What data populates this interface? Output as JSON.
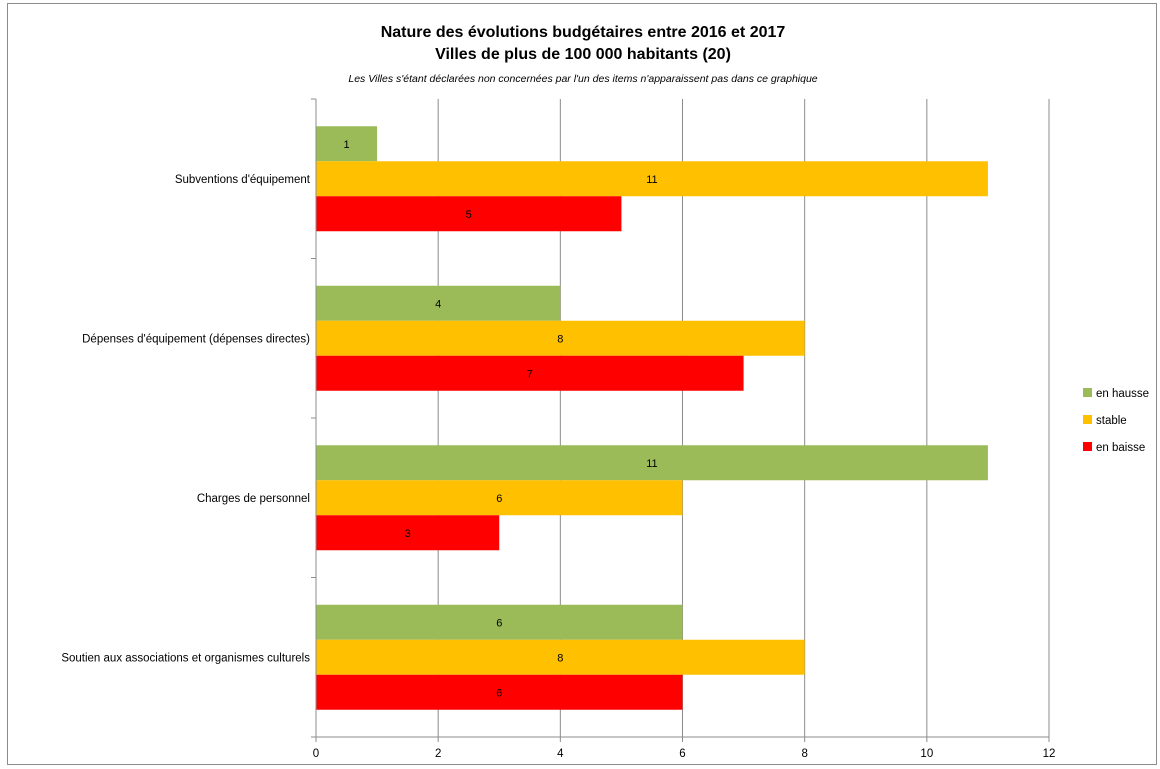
{
  "chart_data": {
    "type": "bar",
    "orientation": "horizontal",
    "title": "Nature des évolutions budgétaires entre 2016 et 2017",
    "title_line2": "Villes de plus de 100 000 habitants (20)",
    "subtitle": "Les Villes s'étant déclarées non concernées par l'un des items n'apparaissent pas dans ce graphique",
    "xlabel": "",
    "ylabel": "",
    "xlim": [
      0,
      12
    ],
    "x_ticks": [
      0,
      2,
      4,
      6,
      8,
      10,
      12
    ],
    "x_tick_labels": [
      "0",
      "2",
      "4",
      "6",
      "8",
      "10",
      "12"
    ],
    "grid": true,
    "legend_position": "right",
    "categories": [
      "Subventions d'équipement",
      "Dépenses d'équipement (dépenses directes)",
      "Charges de personnel",
      "Soutien aux associations et organismes culturels"
    ],
    "series": [
      {
        "name": "en hausse",
        "color": "#9BBB59",
        "values": [
          1,
          4,
          11,
          6
        ]
      },
      {
        "name": "stable",
        "color": "#FFC000",
        "values": [
          11,
          8,
          6,
          8
        ]
      },
      {
        "name": "en baisse",
        "color": "#FF0000",
        "values": [
          5,
          7,
          3,
          6
        ]
      }
    ]
  }
}
